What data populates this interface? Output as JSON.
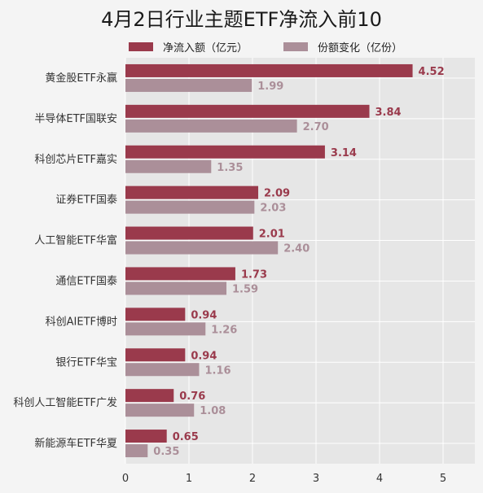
{
  "chart_data": {
    "type": "bar",
    "orientation": "horizontal",
    "title": "4月2日行业主题ETF净流入前10",
    "categories": [
      "黄金股ETF永赢",
      "半导体ETF国联安",
      "科创芯片ETF嘉实",
      "证券ETF国泰",
      "人工智能ETF华富",
      "通信ETF国泰",
      "科创AIETF博时",
      "银行ETF华宝",
      "科创人工智能ETF广发",
      "新能源车ETF华夏"
    ],
    "series": [
      {
        "name": "净流入额（亿元）",
        "color": "#9a3a4c",
        "values": [
          4.52,
          3.84,
          3.14,
          2.09,
          2.01,
          1.73,
          0.94,
          0.94,
          0.76,
          0.65
        ]
      },
      {
        "name": "份额变化（亿份）",
        "color": "#ab8f99",
        "values": [
          1.99,
          2.7,
          1.35,
          2.03,
          2.4,
          1.59,
          1.26,
          1.16,
          1.08,
          0.35
        ]
      }
    ],
    "value_labels": [
      [
        "4.52",
        "3.84",
        "3.14",
        "2.09",
        "2.01",
        "1.73",
        "0.94",
        "0.94",
        "0.76",
        "0.65"
      ],
      [
        "1.99",
        "2.70",
        "1.35",
        "2.03",
        "2.40",
        "1.59",
        "1.26",
        "1.16",
        "1.08",
        "0.35"
      ]
    ],
    "xlim": [
      0,
      5.5
    ],
    "xticks": [
      "0",
      "1",
      "2",
      "3",
      "4",
      "5"
    ],
    "grid": true,
    "legend_position": "top"
  }
}
